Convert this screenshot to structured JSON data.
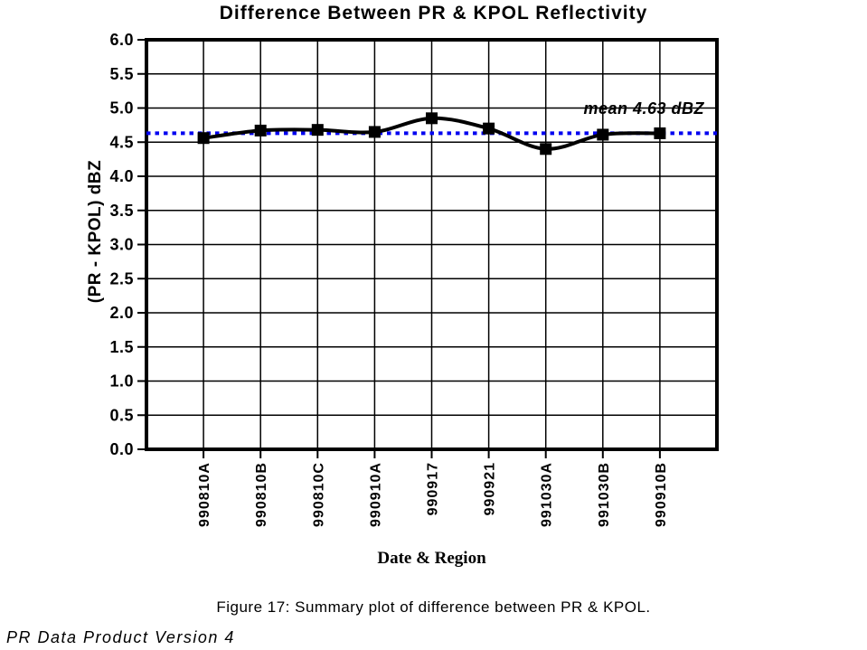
{
  "page": {
    "caption": "Figure 17: Summary plot of difference between PR & KPOL.",
    "footer_note": "PR Data Product Version 4"
  },
  "chart_data": {
    "type": "line",
    "title": "Difference Between PR & KPOL Reflectivity",
    "xlabel": "Date & Region",
    "ylabel": "(PR - KPOL) dBZ",
    "categories": [
      "990810A",
      "990810B",
      "990810C",
      "990910A",
      "990917",
      "990921",
      "991030A",
      "991030B",
      "990910B"
    ],
    "series": [
      {
        "name": "PR minus KPOL reflectivity difference",
        "color": "#000000",
        "marker": "square",
        "smoothed": true,
        "values": [
          4.56,
          4.67,
          4.68,
          4.65,
          4.85,
          4.7,
          4.4,
          4.61,
          4.63
        ]
      }
    ],
    "mean_line": {
      "value": 4.63,
      "label": "mean 4.63 dBZ",
      "color": "#0000F0",
      "style": "dotted"
    },
    "ylim": [
      0.0,
      6.0
    ],
    "y_tick_step": 0.5,
    "y_tick_labels": [
      "6.0",
      "5.5",
      "5.0",
      "4.5",
      "4.0",
      "3.5",
      "3.0",
      "2.5",
      "2.0",
      "1.5",
      "1.0",
      "0.5",
      "0.0"
    ],
    "grid": true,
    "legend": "none"
  }
}
